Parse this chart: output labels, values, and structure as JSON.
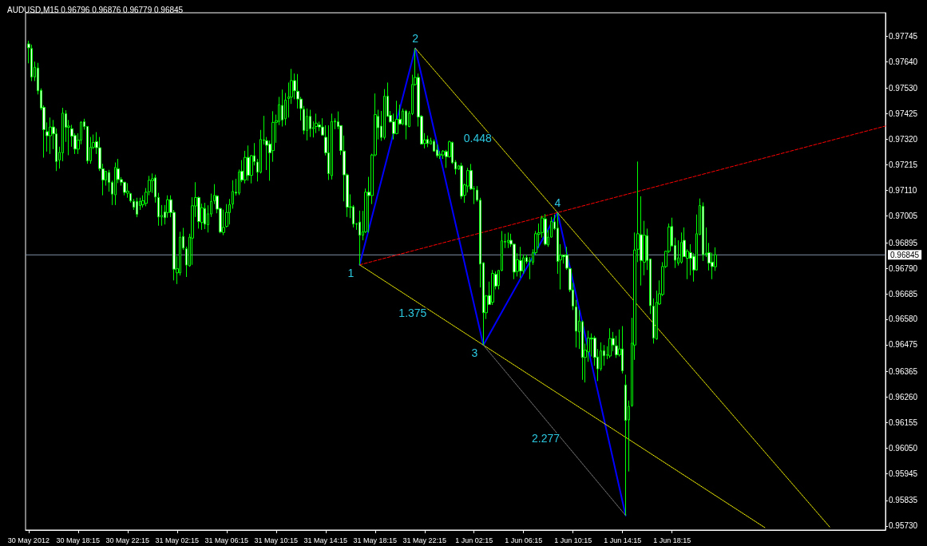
{
  "chart_data": {
    "type": "candlestick",
    "title": "AUDUSD,M15 0.96796 0.96876 0.96779 0.96845",
    "marker": "none",
    "xlim": [
      "2012-05-30T14:00",
      "2012-06-02T11:30"
    ],
    "xticks": [
      {
        "value": "2012-05-30T14:15",
        "label": "30 May 2012"
      },
      {
        "value": "2012-05-30T18:15",
        "label": "30 May 18:15"
      },
      {
        "value": "2012-05-30T22:15",
        "label": "30 May 22:15"
      },
      {
        "value": "2012-05-31T02:15",
        "label": "31 May 02:15"
      },
      {
        "value": "2012-05-31T06:15",
        "label": "31 May 06:15"
      },
      {
        "value": "2012-05-31T10:15",
        "label": "31 May 10:15"
      },
      {
        "value": "2012-05-31T14:15",
        "label": "31 May 14:15"
      },
      {
        "value": "2012-05-31T18:15",
        "label": "31 May 18:15"
      },
      {
        "value": "2012-05-31T22:15",
        "label": "31 May 22:15"
      },
      {
        "value": "2012-06-01T02:15",
        "label": "1 Jun 02:15"
      },
      {
        "value": "2012-06-01T06:15",
        "label": "1 Jun 06:15"
      },
      {
        "value": "2012-06-01T10:15",
        "label": "1 Jun 10:15"
      },
      {
        "value": "2012-06-01T14:15",
        "label": "1 Jun 14:15"
      },
      {
        "value": "2012-06-01T18:15",
        "label": "1 Jun 18:15"
      }
    ],
    "ylim": [
      0.95713,
      0.97841
    ],
    "yticks": [
      0.97745,
      {
        "value": 0.9764,
        "label": "0.97640"
      },
      {
        "value": 0.9753,
        "label": "0.97530"
      },
      0.97425,
      {
        "value": 0.9732,
        "label": "0.97320"
      },
      0.97215,
      {
        "value": 0.9711,
        "label": "0.97110"
      },
      0.97005,
      0.96895,
      {
        "value": 0.9679,
        "label": "0.96790"
      },
      0.96685,
      {
        "value": 0.9658,
        "label": "0.96580"
      },
      0.96475,
      0.96365,
      {
        "value": 0.9626,
        "label": "0.96260"
      },
      0.96155,
      {
        "value": 0.9605,
        "label": "0.96050"
      },
      0.95945,
      0.95835,
      {
        "value": 0.9573,
        "label": "0.95730"
      }
    ],
    "ref_lines": [
      {
        "axis": "y",
        "value": 0.96845,
        "label": "0.96845",
        "color": "#8090a8"
      }
    ],
    "annotations": [
      {
        "text": "1",
        "x": "2012-05-31T17:00",
        "y": 0.96804
      },
      {
        "text": "2",
        "x": "2012-05-31T21:30",
        "y": 0.97695
      },
      {
        "text": "3",
        "x": "2012-06-01T03:00",
        "y": 0.96474
      },
      {
        "text": "4",
        "x": "2012-06-01T09:00",
        "y": 0.97019
      },
      {
        "text": "0.448",
        "x": "2012-06-01T03:15",
        "y": 0.97357
      },
      {
        "text": "1.375",
        "x": "2012-05-31T22:00",
        "y": 0.96639
      },
      {
        "text": "2.277",
        "x": "2012-06-01T08:45",
        "y": 0.96124
      }
    ],
    "series": [
      {
        "color": "#00ff00",
        "x": [
          "2012-05-30T14:15",
          "2012-05-30T14:30",
          "2012-05-30T14:45",
          "2012-05-30T15:00",
          "2012-05-30T15:15",
          "2012-05-30T15:30",
          "2012-05-30T15:45",
          "2012-05-30T16:00",
          "2012-05-30T16:15",
          "2012-05-30T16:30",
          "2012-05-30T16:45",
          "2012-05-30T17:00",
          "2012-05-30T17:15",
          "2012-05-30T17:30",
          "2012-05-30T17:45",
          "2012-05-30T18:00",
          "2012-05-30T18:15",
          "2012-05-30T18:30",
          "2012-05-30T18:45",
          "2012-05-30T19:00",
          "2012-05-30T19:15",
          "2012-05-30T19:30",
          "2012-05-30T19:45",
          "2012-05-30T20:00",
          "2012-05-30T20:15",
          "2012-05-30T20:30",
          "2012-05-30T20:45",
          "2012-05-30T21:00",
          "2012-05-30T21:15",
          "2012-05-30T21:30",
          "2012-05-30T21:45",
          "2012-05-30T22:00",
          "2012-05-30T22:15",
          "2012-05-30T22:30",
          "2012-05-30T22:45",
          "2012-05-30T23:00",
          "2012-05-30T23:15",
          "2012-05-30T23:30",
          "2012-05-30T23:45",
          "2012-05-31T00:00",
          "2012-05-31T00:15",
          "2012-05-31T00:30",
          "2012-05-31T00:45",
          "2012-05-31T01:00",
          "2012-05-31T01:15",
          "2012-05-31T01:30",
          "2012-05-31T01:45",
          "2012-05-31T02:00",
          "2012-05-31T02:15",
          "2012-05-31T02:30",
          "2012-05-31T02:45",
          "2012-05-31T03:00",
          "2012-05-31T03:15",
          "2012-05-31T03:30",
          "2012-05-31T03:45",
          "2012-05-31T04:00",
          "2012-05-31T04:15",
          "2012-05-31T04:30",
          "2012-05-31T04:45",
          "2012-05-31T05:00",
          "2012-05-31T05:15",
          "2012-05-31T05:30",
          "2012-05-31T05:45",
          "2012-05-31T06:00",
          "2012-05-31T06:15",
          "2012-05-31T06:30",
          "2012-05-31T06:45",
          "2012-05-31T07:00",
          "2012-05-31T07:15",
          "2012-05-31T07:30",
          "2012-05-31T07:45",
          "2012-05-31T08:00",
          "2012-05-31T08:15",
          "2012-05-31T08:30",
          "2012-05-31T08:45",
          "2012-05-31T09:00",
          "2012-05-31T09:15",
          "2012-05-31T09:30",
          "2012-05-31T09:45",
          "2012-05-31T10:00",
          "2012-05-31T10:15",
          "2012-05-31T10:30",
          "2012-05-31T10:45",
          "2012-05-31T11:00",
          "2012-05-31T11:15",
          "2012-05-31T11:30",
          "2012-05-31T11:45",
          "2012-05-31T12:00",
          "2012-05-31T12:15",
          "2012-05-31T12:30",
          "2012-05-31T12:45",
          "2012-05-31T13:00",
          "2012-05-31T13:15",
          "2012-05-31T13:30",
          "2012-05-31T13:45",
          "2012-05-31T14:00",
          "2012-05-31T14:15",
          "2012-05-31T14:30",
          "2012-05-31T14:45",
          "2012-05-31T15:00",
          "2012-05-31T15:15",
          "2012-05-31T15:30",
          "2012-05-31T15:45",
          "2012-05-31T16:00",
          "2012-05-31T16:15",
          "2012-05-31T16:30",
          "2012-05-31T16:45",
          "2012-05-31T17:00",
          "2012-05-31T17:15",
          "2012-05-31T17:30",
          "2012-05-31T17:45",
          "2012-05-31T18:00",
          "2012-05-31T18:15",
          "2012-05-31T18:30",
          "2012-05-31T18:45",
          "2012-05-31T19:00",
          "2012-05-31T19:15",
          "2012-05-31T19:30",
          "2012-05-31T19:45",
          "2012-05-31T20:00",
          "2012-05-31T20:15",
          "2012-05-31T20:30",
          "2012-05-31T20:45",
          "2012-05-31T21:00",
          "2012-05-31T21:15",
          "2012-05-31T21:30",
          "2012-05-31T21:45",
          "2012-05-31T22:00",
          "2012-05-31T22:15",
          "2012-05-31T22:30",
          "2012-05-31T22:45",
          "2012-05-31T23:00",
          "2012-05-31T23:15",
          "2012-05-31T23:30",
          "2012-05-31T23:45",
          "2012-06-01T00:00",
          "2012-06-01T00:15",
          "2012-06-01T00:30",
          "2012-06-01T00:45",
          "2012-06-01T01:00",
          "2012-06-01T01:15",
          "2012-06-01T01:30",
          "2012-06-01T01:45",
          "2012-06-01T02:00",
          "2012-06-01T02:15",
          "2012-06-01T02:30",
          "2012-06-01T02:45",
          "2012-06-01T03:00",
          "2012-06-01T03:15",
          "2012-06-01T03:30",
          "2012-06-01T03:45",
          "2012-06-01T04:00",
          "2012-06-01T04:15",
          "2012-06-01T04:30",
          "2012-06-01T04:45",
          "2012-06-01T05:00",
          "2012-06-01T05:15",
          "2012-06-01T05:30",
          "2012-06-01T05:45",
          "2012-06-01T06:00",
          "2012-06-01T06:15",
          "2012-06-01T06:30",
          "2012-06-01T06:45",
          "2012-06-01T07:00",
          "2012-06-01T07:15",
          "2012-06-01T07:30",
          "2012-06-01T07:45",
          "2012-06-01T08:00",
          "2012-06-01T08:15",
          "2012-06-01T08:30",
          "2012-06-01T08:45",
          "2012-06-01T09:00",
          "2012-06-01T09:15",
          "2012-06-01T09:30",
          "2012-06-01T09:45",
          "2012-06-01T10:00",
          "2012-06-01T10:15",
          "2012-06-01T10:30",
          "2012-06-01T10:45",
          "2012-06-01T11:00",
          "2012-06-01T11:15",
          "2012-06-01T11:30",
          "2012-06-01T11:45",
          "2012-06-01T12:00",
          "2012-06-01T12:15",
          "2012-06-01T12:30",
          "2012-06-01T12:45",
          "2012-06-01T13:00",
          "2012-06-01T13:15",
          "2012-06-01T13:30",
          "2012-06-01T13:45",
          "2012-06-01T14:00",
          "2012-06-01T14:15",
          "2012-06-01T14:30",
          "2012-06-01T14:45",
          "2012-06-01T15:00",
          "2012-06-01T15:15",
          "2012-06-01T15:30",
          "2012-06-01T15:45",
          "2012-06-01T16:00",
          "2012-06-01T16:15",
          "2012-06-01T16:30",
          "2012-06-01T16:45",
          "2012-06-01T17:00",
          "2012-06-01T17:15",
          "2012-06-01T17:30",
          "2012-06-01T17:45",
          "2012-06-01T18:00",
          "2012-06-01T18:15",
          "2012-06-01T18:30",
          "2012-06-01T18:45",
          "2012-06-01T19:00",
          "2012-06-01T19:15",
          "2012-06-01T19:30",
          "2012-06-01T19:45",
          "2012-06-01T20:00",
          "2012-06-01T20:15",
          "2012-06-01T20:30",
          "2012-06-01T20:45",
          "2012-06-01T21:00",
          "2012-06-01T21:15",
          "2012-06-01T21:30",
          "2012-06-01T21:45"
        ],
        "ohlc": [
          [
            0.97713,
            0.97726,
            0.97633,
            0.97697
          ],
          [
            0.97694,
            0.9771,
            0.9756,
            0.97577
          ],
          [
            0.97577,
            0.9764,
            0.9756,
            0.97617
          ],
          [
            0.97614,
            0.97635,
            0.97505,
            0.9752
          ],
          [
            0.97522,
            0.9753,
            0.9744,
            0.97449
          ],
          [
            0.97452,
            0.9746,
            0.97245,
            0.9736
          ],
          [
            0.97352,
            0.9739,
            0.9727,
            0.97335
          ],
          [
            0.97335,
            0.9741,
            0.9726,
            0.97371
          ],
          [
            0.97371,
            0.974,
            0.9728,
            0.97343
          ],
          [
            0.97343,
            0.97365,
            0.9719,
            0.97229
          ],
          [
            0.97235,
            0.9729,
            0.972,
            0.97267
          ],
          [
            0.97265,
            0.9745,
            0.9723,
            0.97428
          ],
          [
            0.97426,
            0.9744,
            0.9731,
            0.9737
          ],
          [
            0.9737,
            0.974,
            0.97255,
            0.97375
          ],
          [
            0.97364,
            0.9738,
            0.9729,
            0.97333
          ],
          [
            0.97336,
            0.97345,
            0.9726,
            0.9728
          ],
          [
            0.9728,
            0.97345,
            0.9726,
            0.97317
          ],
          [
            0.97317,
            0.97395,
            0.973,
            0.97391
          ],
          [
            0.97393,
            0.97405,
            0.9736,
            0.97373
          ],
          [
            0.97373,
            0.97375,
            0.9722,
            0.97232
          ],
          [
            0.97232,
            0.9733,
            0.9722,
            0.97288
          ],
          [
            0.97288,
            0.9734,
            0.9728,
            0.97307
          ],
          [
            0.97311,
            0.9735,
            0.9726,
            0.97286
          ],
          [
            0.97286,
            0.9733,
            0.9719,
            0.972
          ],
          [
            0.97199,
            0.9722,
            0.9709,
            0.97153
          ],
          [
            0.97153,
            0.9719,
            0.9713,
            0.97189
          ],
          [
            0.97184,
            0.97195,
            0.97105,
            0.97143
          ],
          [
            0.97143,
            0.9715,
            0.9705,
            0.97095
          ],
          [
            0.97092,
            0.97225,
            0.9705,
            0.97205
          ],
          [
            0.97199,
            0.9724,
            0.9714,
            0.97155
          ],
          [
            0.97155,
            0.97165,
            0.9713,
            0.97144
          ],
          [
            0.97144,
            0.97145,
            0.9709,
            0.97102
          ],
          [
            0.97099,
            0.9714,
            0.9708,
            0.97107
          ],
          [
            0.97097,
            0.971,
            0.9706,
            0.97067
          ],
          [
            0.97065,
            0.97075,
            0.9703,
            0.97041
          ],
          [
            0.97065,
            0.9708,
            0.97,
            0.97012
          ],
          [
            0.97048,
            0.9708,
            0.9703,
            0.97065
          ],
          [
            0.97051,
            0.9709,
            0.9704,
            0.97068
          ],
          [
            0.97057,
            0.9712,
            0.97045,
            0.97103
          ],
          [
            0.97105,
            0.9717,
            0.9709,
            0.97152
          ],
          [
            0.9715,
            0.9718,
            0.971,
            0.97158
          ],
          [
            0.97162,
            0.97175,
            0.9706,
            0.97083
          ],
          [
            0.97081,
            0.971,
            0.96965,
            0.97001
          ],
          [
            0.97001,
            0.9705,
            0.96965,
            0.97008
          ],
          [
            0.97022,
            0.9705,
            0.9697,
            0.96998
          ],
          [
            0.97019,
            0.9709,
            0.96998,
            0.97072
          ],
          [
            0.97072,
            0.9709,
            0.97,
            0.97019
          ],
          [
            0.9702,
            0.9703,
            0.9674,
            0.96786
          ],
          [
            0.96771,
            0.9684,
            0.96725,
            0.96788
          ],
          [
            0.96771,
            0.9694,
            0.9676,
            0.96918
          ],
          [
            0.96921,
            0.96956,
            0.96865,
            0.96873
          ],
          [
            0.9687,
            0.96879,
            0.96754,
            0.96803
          ],
          [
            0.968,
            0.96932,
            0.96796,
            0.96918
          ],
          [
            0.96914,
            0.97082,
            0.96804,
            0.97047
          ],
          [
            0.97046,
            0.97144,
            0.97001,
            0.97081
          ],
          [
            0.97081,
            0.97085,
            0.96953,
            0.96982
          ],
          [
            0.96978,
            0.97056,
            0.96948,
            0.97039
          ],
          [
            0.97036,
            0.97059,
            0.96951,
            0.96971
          ],
          [
            0.96969,
            0.97049,
            0.96937,
            0.97014
          ],
          [
            0.97013,
            0.97097,
            0.97001,
            0.97065
          ],
          [
            0.97067,
            0.97136,
            0.97054,
            0.9709
          ],
          [
            0.97087,
            0.97091,
            0.97016,
            0.97033
          ],
          [
            0.97036,
            0.97039,
            0.96934,
            0.96939
          ],
          [
            0.96937,
            0.97031,
            0.96926,
            0.96958
          ],
          [
            0.96962,
            0.97054,
            0.96958,
            0.9702
          ],
          [
            0.97019,
            0.97075,
            0.9697,
            0.97052
          ],
          [
            0.97054,
            0.97152,
            0.97035,
            0.97106
          ],
          [
            0.97103,
            0.97158,
            0.97089,
            0.97099
          ],
          [
            0.97099,
            0.97196,
            0.97091,
            0.97186
          ],
          [
            0.97189,
            0.97235,
            0.97144,
            0.97153
          ],
          [
            0.97153,
            0.97273,
            0.97139,
            0.97246
          ],
          [
            0.97246,
            0.97295,
            0.9715,
            0.97172
          ],
          [
            0.97172,
            0.97256,
            0.97139,
            0.97253
          ],
          [
            0.97253,
            0.97305,
            0.97213,
            0.97229
          ],
          [
            0.97227,
            0.9724,
            0.97147,
            0.97185
          ],
          [
            0.97185,
            0.97359,
            0.9718,
            0.9732
          ],
          [
            0.97318,
            0.97417,
            0.97299,
            0.97316
          ],
          [
            0.97315,
            0.9733,
            0.97194,
            0.97296
          ],
          [
            0.97301,
            0.97315,
            0.9715,
            0.97265
          ],
          [
            0.97274,
            0.97436,
            0.97228,
            0.9739
          ],
          [
            0.9739,
            0.97422,
            0.97306,
            0.97397
          ],
          [
            0.97394,
            0.97495,
            0.97379,
            0.97463
          ],
          [
            0.9746,
            0.97525,
            0.97373,
            0.974
          ],
          [
            0.97405,
            0.97511,
            0.97378,
            0.97482
          ],
          [
            0.97488,
            0.97554,
            0.9741,
            0.97495
          ],
          [
            0.97494,
            0.9761,
            0.97466,
            0.97562
          ],
          [
            0.97562,
            0.97591,
            0.97485,
            0.9752
          ],
          [
            0.97518,
            0.97589,
            0.97447,
            0.97486
          ],
          [
            0.97486,
            0.97495,
            0.97398,
            0.97447
          ],
          [
            0.97444,
            0.97458,
            0.97341,
            0.97357
          ],
          [
            0.97357,
            0.97447,
            0.97316,
            0.97415
          ],
          [
            0.97415,
            0.97442,
            0.9733,
            0.97364
          ],
          [
            0.97364,
            0.97394,
            0.97328,
            0.97369
          ],
          [
            0.97373,
            0.97426,
            0.97346,
            0.97387
          ],
          [
            0.9738,
            0.97393,
            0.97354,
            0.97371
          ],
          [
            0.97371,
            0.97407,
            0.97336,
            0.97338
          ],
          [
            0.97329,
            0.97378,
            0.97254,
            0.97265
          ],
          [
            0.97265,
            0.97378,
            0.97153,
            0.97179
          ],
          [
            0.97171,
            0.97426,
            0.97155,
            0.97394
          ],
          [
            0.97392,
            0.97407,
            0.97362,
            0.97396
          ],
          [
            0.97393,
            0.97435,
            0.97362,
            0.97373
          ],
          [
            0.97377,
            0.97378,
            0.97256,
            0.97274
          ],
          [
            0.97272,
            0.97336,
            0.97065,
            0.97174
          ],
          [
            0.97174,
            0.9718,
            0.97001,
            0.97041
          ],
          [
            0.97041,
            0.97094,
            0.96996,
            0.97043
          ],
          [
            0.97043,
            0.9705,
            0.96958,
            0.96972
          ],
          [
            0.96971,
            0.96976,
            0.96948,
            0.96973
          ],
          [
            0.9698,
            0.97027,
            0.96804,
            0.96926
          ],
          [
            0.96926,
            0.97026,
            0.96905,
            0.9694
          ],
          [
            0.9694,
            0.97118,
            0.96935,
            0.97103
          ],
          [
            0.97103,
            0.97166,
            0.96937,
            0.97089
          ],
          [
            0.97089,
            0.97261,
            0.97054,
            0.97256
          ],
          [
            0.97256,
            0.97509,
            0.9725,
            0.97422
          ],
          [
            0.97415,
            0.97442,
            0.9732,
            0.97368
          ],
          [
            0.97375,
            0.97437,
            0.97314,
            0.97328
          ],
          [
            0.97328,
            0.97527,
            0.9732,
            0.97498
          ],
          [
            0.97498,
            0.97554,
            0.97413,
            0.97415
          ],
          [
            0.97419,
            0.97437,
            0.97389,
            0.97392
          ],
          [
            0.97393,
            0.97426,
            0.9732,
            0.97344
          ],
          [
            0.97344,
            0.97479,
            0.97341,
            0.97403
          ],
          [
            0.97403,
            0.97463,
            0.9738,
            0.97384
          ],
          [
            0.97384,
            0.97447,
            0.97378,
            0.97437
          ],
          [
            0.97437,
            0.97442,
            0.9732,
            0.97378
          ],
          [
            0.97373,
            0.97437,
            0.9737,
            0.97428
          ],
          [
            0.97426,
            0.97586,
            0.9742,
            0.97546
          ],
          [
            0.97546,
            0.97695,
            0.9754,
            0.97575
          ],
          [
            0.97575,
            0.97591,
            0.97373,
            0.97412
          ],
          [
            0.97415,
            0.9742,
            0.97299,
            0.97301
          ],
          [
            0.97303,
            0.97346,
            0.97283,
            0.97318
          ],
          [
            0.9732,
            0.97336,
            0.97288,
            0.97303
          ],
          [
            0.97301,
            0.97327,
            0.97299,
            0.97314
          ],
          [
            0.97312,
            0.9732,
            0.97269,
            0.97272
          ],
          [
            0.97277,
            0.97299,
            0.97245,
            0.97253
          ],
          [
            0.97253,
            0.97272,
            0.9724,
            0.97259
          ],
          [
            0.97256,
            0.97276,
            0.9724,
            0.97272
          ],
          [
            0.9727,
            0.97277,
            0.97203,
            0.97249
          ],
          [
            0.97249,
            0.97315,
            0.97245,
            0.9731
          ],
          [
            0.97307,
            0.97311,
            0.97219,
            0.97224
          ],
          [
            0.97227,
            0.97235,
            0.97176,
            0.97198
          ],
          [
            0.97198,
            0.97215,
            0.97195,
            0.97211
          ],
          [
            0.97211,
            0.97224,
            0.97075,
            0.97086
          ],
          [
            0.9709,
            0.97138,
            0.97059,
            0.97133
          ],
          [
            0.97128,
            0.97203,
            0.97102,
            0.97192
          ],
          [
            0.97192,
            0.97219,
            0.97112,
            0.97116
          ],
          [
            0.97116,
            0.97128,
            0.97054,
            0.97118
          ],
          [
            0.97112,
            0.97128,
            0.97064,
            0.9707
          ],
          [
            0.9707,
            0.9708,
            0.96711,
            0.96807
          ],
          [
            0.96812,
            0.96815,
            0.96474,
            0.96607
          ],
          [
            0.96607,
            0.9668,
            0.96581,
            0.96676
          ],
          [
            0.96678,
            0.96735,
            0.96639,
            0.96641
          ],
          [
            0.9665,
            0.96783,
            0.96639,
            0.96769
          ],
          [
            0.96765,
            0.96777,
            0.96703,
            0.96716
          ],
          [
            0.96719,
            0.96783,
            0.96703,
            0.96781
          ],
          [
            0.96781,
            0.96943,
            0.96778,
            0.96903
          ],
          [
            0.969,
            0.96932,
            0.96873,
            0.96898
          ],
          [
            0.96897,
            0.96937,
            0.96873,
            0.96905
          ],
          [
            0.96905,
            0.96932,
            0.96878,
            0.96889
          ],
          [
            0.96889,
            0.96892,
            0.96745,
            0.96774
          ],
          [
            0.96777,
            0.96852,
            0.96756,
            0.96825
          ],
          [
            0.96822,
            0.96878,
            0.96751,
            0.96779
          ],
          [
            0.96779,
            0.96846,
            0.96767,
            0.96833
          ],
          [
            0.96834,
            0.96846,
            0.96809,
            0.96817
          ],
          [
            0.96818,
            0.96836,
            0.96745,
            0.96823
          ],
          [
            0.96815,
            0.96868,
            0.96804,
            0.96854
          ],
          [
            0.96854,
            0.96943,
            0.96846,
            0.96932
          ],
          [
            0.9693,
            0.96974,
            0.96873,
            0.96936
          ],
          [
            0.96937,
            0.97006,
            0.96916,
            0.96997
          ],
          [
            0.96993,
            0.97013,
            0.96884,
            0.96889
          ],
          [
            0.96886,
            0.96947,
            0.96878,
            0.96918
          ],
          [
            0.96918,
            0.97001,
            0.96916,
            0.96983
          ],
          [
            0.96981,
            0.97011,
            0.96947,
            0.96953
          ],
          [
            0.96955,
            0.97019,
            0.96767,
            0.96818
          ],
          [
            0.96824,
            0.96889,
            0.96703,
            0.96843
          ],
          [
            0.96844,
            0.96846,
            0.96809,
            0.96838
          ],
          [
            0.96844,
            0.96878,
            0.96783,
            0.9679
          ],
          [
            0.96788,
            0.96793,
            0.96692,
            0.96701
          ],
          [
            0.96701,
            0.9673,
            0.96618,
            0.96634
          ],
          [
            0.96631,
            0.9666,
            0.96464,
            0.96531
          ],
          [
            0.96528,
            0.96618,
            0.96458,
            0.96573
          ],
          [
            0.9657,
            0.96575,
            0.96331,
            0.96423
          ],
          [
            0.96423,
            0.9648,
            0.9632,
            0.96453
          ],
          [
            0.96446,
            0.96533,
            0.96405,
            0.96503
          ],
          [
            0.96503,
            0.96522,
            0.96427,
            0.96499
          ],
          [
            0.96503,
            0.96512,
            0.96389,
            0.96423
          ],
          [
            0.96425,
            0.96458,
            0.96326,
            0.96376
          ],
          [
            0.96376,
            0.96485,
            0.96368,
            0.9645
          ],
          [
            0.96451,
            0.96474,
            0.96389,
            0.9643
          ],
          [
            0.96432,
            0.96469,
            0.96416,
            0.96434
          ],
          [
            0.96429,
            0.96543,
            0.96421,
            0.96501
          ],
          [
            0.96501,
            0.96528,
            0.96448,
            0.96474
          ],
          [
            0.96471,
            0.96512,
            0.96421,
            0.96434
          ],
          [
            0.96434,
            0.96538,
            0.96427,
            0.96458
          ],
          [
            0.96458,
            0.96552,
            0.96357,
            0.96368
          ],
          [
            0.9631,
            0.96352,
            0.95773,
            0.96164
          ],
          [
            0.96166,
            0.96246,
            0.95954,
            0.96222
          ],
          [
            0.96225,
            0.96586,
            0.9622,
            0.96482
          ],
          [
            0.96474,
            0.96937,
            0.96413,
            0.96865
          ],
          [
            0.96868,
            0.97229,
            0.96815,
            0.96932
          ],
          [
            0.96928,
            0.97086,
            0.96719,
            0.96822
          ],
          [
            0.96815,
            0.96985,
            0.96761,
            0.96926
          ],
          [
            0.96924,
            0.96953,
            0.96783,
            0.96822
          ],
          [
            0.96828,
            0.9683,
            0.96602,
            0.96636
          ],
          [
            0.96634,
            0.96666,
            0.9648,
            0.96503
          ],
          [
            0.96499,
            0.96698,
            0.96496,
            0.9665
          ],
          [
            0.96643,
            0.9674,
            0.96639,
            0.96685
          ],
          [
            0.96682,
            0.96815,
            0.96676,
            0.96797
          ],
          [
            0.96797,
            0.96862,
            0.96791,
            0.9686
          ],
          [
            0.9686,
            0.96974,
            0.96852,
            0.9696
          ],
          [
            0.96962,
            0.96998,
            0.96878,
            0.96882
          ],
          [
            0.96884,
            0.96916,
            0.96791,
            0.96823
          ],
          [
            0.96811,
            0.96905,
            0.96801,
            0.96833
          ],
          [
            0.96815,
            0.96937,
            0.96809,
            0.96896
          ],
          [
            0.96905,
            0.96958,
            0.96836,
            0.96838
          ],
          [
            0.96831,
            0.96868,
            0.96745,
            0.9686
          ],
          [
            0.96854,
            0.96889,
            0.96761,
            0.96831
          ],
          [
            0.96839,
            0.96852,
            0.96735,
            0.96783
          ],
          [
            0.96783,
            0.97011,
            0.9678,
            0.96932
          ],
          [
            0.96929,
            0.97077,
            0.96926,
            0.97048
          ],
          [
            0.97045,
            0.97061,
            0.9682,
            0.96846
          ],
          [
            0.96846,
            0.96958,
            0.96836,
            0.96852
          ],
          [
            0.96854,
            0.96894,
            0.96781,
            0.96811
          ],
          [
            0.96815,
            0.96854,
            0.96745,
            0.96797
          ],
          [
            0.96796,
            0.96876,
            0.96779,
            0.96845
          ]
        ]
      },
      {
        "type": "line",
        "color": "#0000ff",
        "line_style": "solid",
        "x": [
          "2012-05-31T17:00",
          "2012-05-31T21:30",
          "2012-06-01T03:00",
          "2012-06-01T09:00",
          "2012-06-01T14:30"
        ],
        "values": [
          0.96804,
          0.97695,
          0.96474,
          0.97019,
          0.95773
        ]
      },
      {
        "type": "line",
        "color": "#ff0000",
        "line_style": "dashed",
        "x": [
          "2012-05-31T17:00",
          "2012-06-02T11:30"
        ],
        "values": [
          0.96804,
          0.97375
        ]
      },
      {
        "type": "line",
        "color": "#ffff00",
        "line_style": "dotted",
        "x": [
          "2012-05-31T21:30",
          "2012-06-02T07:00"
        ],
        "values": [
          0.97695,
          0.95725
        ]
      },
      {
        "type": "line",
        "color": "#ffff00",
        "line_style": "dotted",
        "x": [
          "2012-05-31T17:00",
          "2012-06-02T01:45"
        ],
        "values": [
          0.96804,
          0.95723
        ]
      },
      {
        "type": "line",
        "color": "#808080",
        "line_style": "dotted",
        "x": [
          "2012-06-01T03:00",
          "2012-06-01T14:30"
        ],
        "values": [
          0.96474,
          0.95773
        ]
      }
    ]
  }
}
